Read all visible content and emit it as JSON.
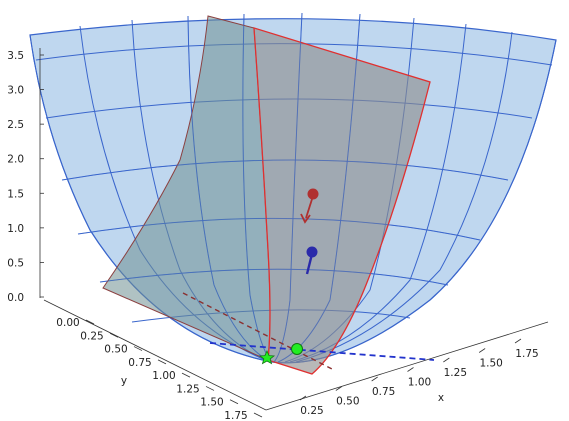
{
  "chart_data": {
    "type": "surface3d",
    "title": "",
    "axes": {
      "x": {
        "label": "x",
        "ticks": [
          "0.25",
          "0.50",
          "0.75",
          "1.00",
          "1.25",
          "1.50",
          "1.75"
        ]
      },
      "y": {
        "label": "y",
        "ticks": [
          "0.00",
          "0.25",
          "0.50",
          "0.75",
          "1.00",
          "1.25",
          "1.50",
          "1.75"
        ]
      },
      "z": {
        "label": "",
        "ticks": [
          "0.0",
          "0.5",
          "1.0",
          "1.5",
          "2.0",
          "2.5",
          "3.0",
          "3.5"
        ]
      }
    },
    "z_range": [
      0,
      3.5
    ],
    "surfaces": [
      {
        "name": "",
        "color": "#aac9ea",
        "edge_color": "#3a66cc",
        "description": "curved mesh sector"
      },
      {
        "name": "",
        "color": "#8c8c8c",
        "edge_color": "#e03030",
        "description": "vertical plane (right part)"
      },
      {
        "name": "",
        "color": "#7a9a9a",
        "edge_color": "#8b4040",
        "description": "vertical plane (left part)"
      }
    ],
    "markers": [
      {
        "kind": "point",
        "color": "#b03030",
        "description": "red sphere"
      },
      {
        "kind": "point",
        "color": "#2a2aaa",
        "description": "blue sphere"
      },
      {
        "kind": "point",
        "color": "#22dd22",
        "description": "green circle on floor"
      },
      {
        "kind": "star",
        "color": "#22dd22",
        "description": "green star on floor"
      }
    ],
    "colors": {
      "mesh_fill": "#aac9ea",
      "mesh_line": "#3a66cc",
      "plane_fill": "#8c8c8c",
      "plane_edge": "#e03030",
      "dashed_blue": "#2233cc",
      "dashed_red": "#8b3030"
    }
  }
}
